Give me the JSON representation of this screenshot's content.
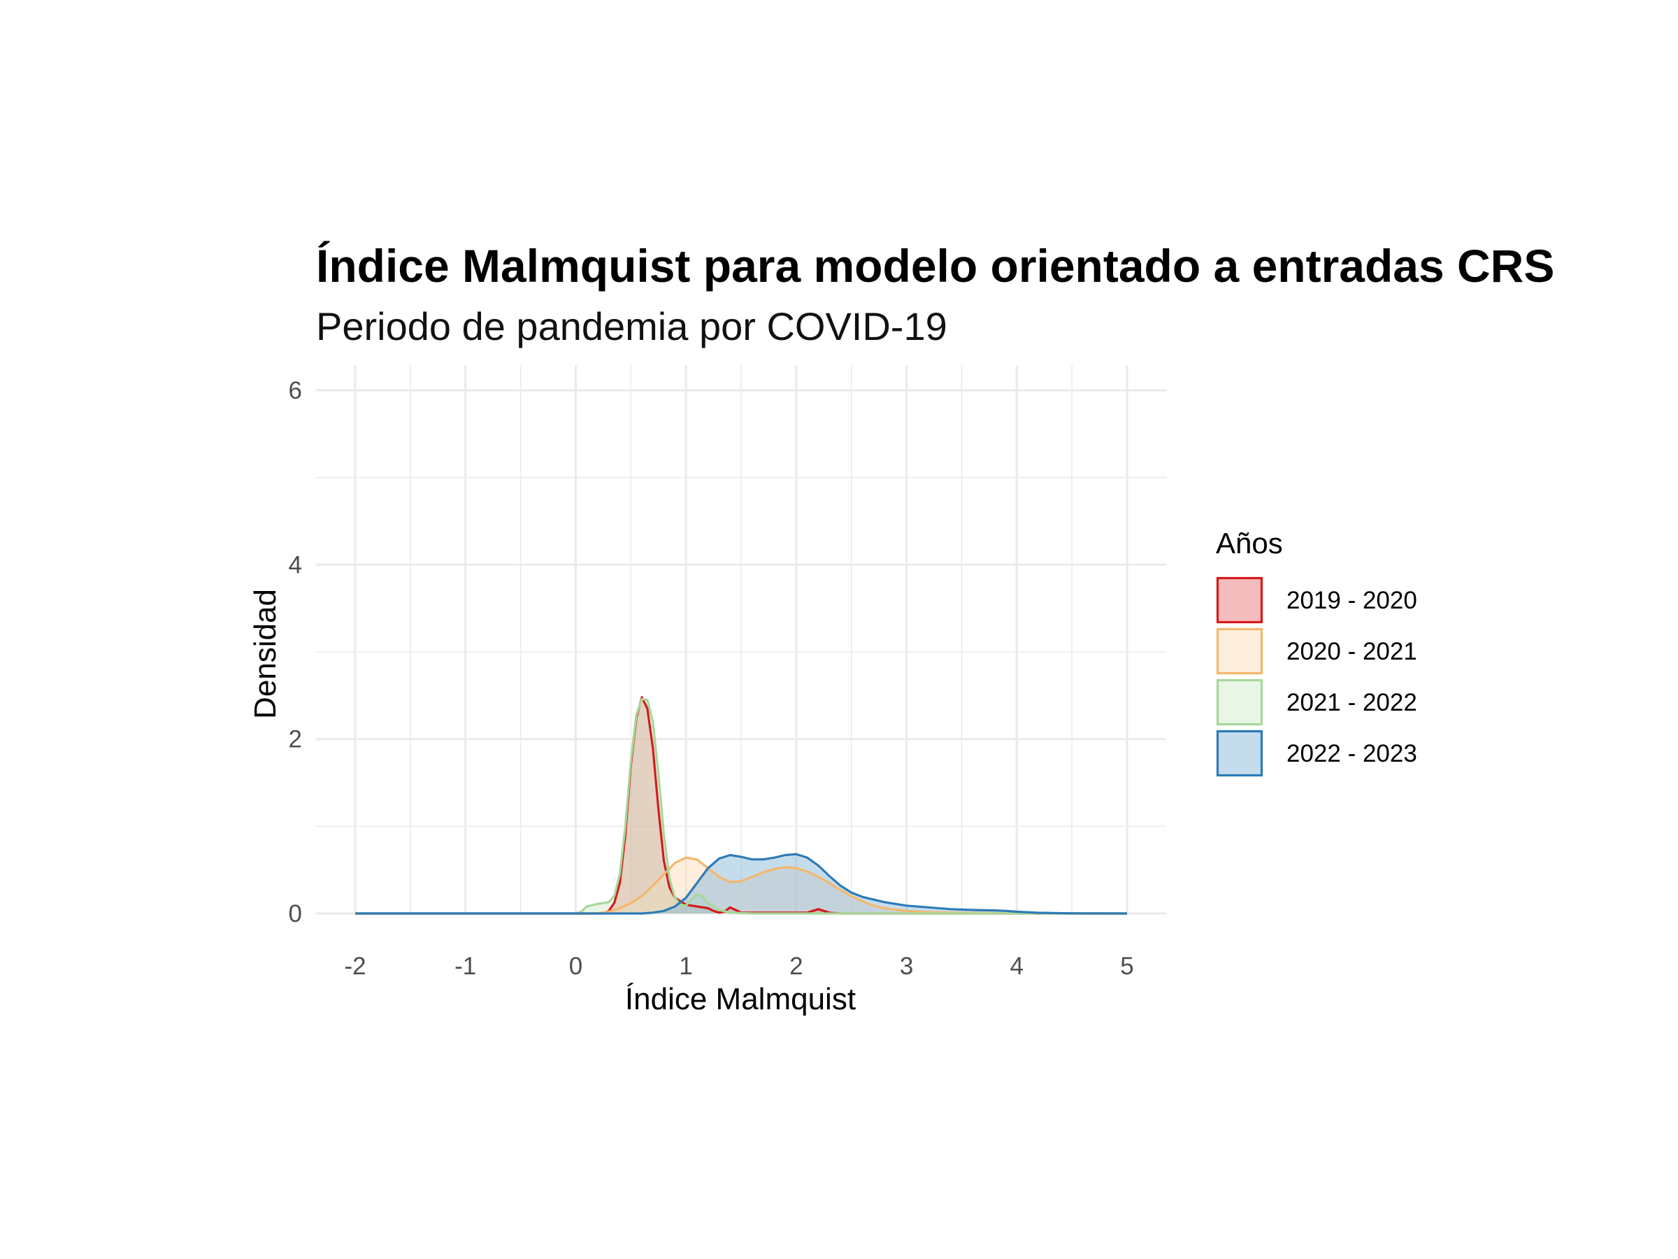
{
  "chart_data": {
    "type": "area",
    "title": "Índice Malmquist para modelo orientado a entradas CRS",
    "subtitle": "Periodo de pandemia por COVID-19",
    "xlabel": "Índice Malmquist",
    "ylabel": "Densidad",
    "xlim": [
      -2,
      5
    ],
    "ylim": [
      0,
      6
    ],
    "xticks": [
      "-2",
      "-1",
      "0",
      "1",
      "2",
      "3",
      "4",
      "5"
    ],
    "yticks": [
      "0",
      "2",
      "4",
      "6"
    ],
    "grid": true,
    "legend": {
      "title": "Años",
      "position": "right"
    },
    "series": [
      {
        "name": "2019 - 2020",
        "line_color": "#d7191c",
        "fill_color": "#e66a6c",
        "points": [
          [
            -2,
            0
          ],
          [
            0.25,
            0
          ],
          [
            0.3,
            0.03
          ],
          [
            0.35,
            0.12
          ],
          [
            0.4,
            0.35
          ],
          [
            0.45,
            0.9
          ],
          [
            0.5,
            1.7
          ],
          [
            0.55,
            2.25
          ],
          [
            0.6,
            2.48
          ],
          [
            0.65,
            2.35
          ],
          [
            0.7,
            1.9
          ],
          [
            0.75,
            1.2
          ],
          [
            0.8,
            0.6
          ],
          [
            0.85,
            0.3
          ],
          [
            0.9,
            0.18
          ],
          [
            1.0,
            0.1
          ],
          [
            1.1,
            0.08
          ],
          [
            1.2,
            0.06
          ],
          [
            1.25,
            0.03
          ],
          [
            1.3,
            0.01
          ],
          [
            1.35,
            0.02
          ],
          [
            1.4,
            0.07
          ],
          [
            1.45,
            0.04
          ],
          [
            1.5,
            0.01
          ],
          [
            2.1,
            0.01
          ],
          [
            2.2,
            0.05
          ],
          [
            2.3,
            0.01
          ],
          [
            2.4,
            0
          ],
          [
            5,
            0
          ]
        ]
      },
      {
        "name": "2020 - 2021",
        "line_color": "#f4b76b",
        "fill_color": "#fdd9b5",
        "points": [
          [
            -2,
            0
          ],
          [
            0.2,
            0
          ],
          [
            0.3,
            0.02
          ],
          [
            0.4,
            0.06
          ],
          [
            0.5,
            0.12
          ],
          [
            0.6,
            0.2
          ],
          [
            0.7,
            0.32
          ],
          [
            0.8,
            0.45
          ],
          [
            0.9,
            0.58
          ],
          [
            1.0,
            0.64
          ],
          [
            1.1,
            0.62
          ],
          [
            1.2,
            0.52
          ],
          [
            1.3,
            0.42
          ],
          [
            1.4,
            0.36
          ],
          [
            1.5,
            0.37
          ],
          [
            1.6,
            0.42
          ],
          [
            1.7,
            0.47
          ],
          [
            1.8,
            0.51
          ],
          [
            1.9,
            0.53
          ],
          [
            2.0,
            0.52
          ],
          [
            2.1,
            0.48
          ],
          [
            2.2,
            0.42
          ],
          [
            2.3,
            0.35
          ],
          [
            2.4,
            0.27
          ],
          [
            2.5,
            0.2
          ],
          [
            2.6,
            0.14
          ],
          [
            2.7,
            0.09
          ],
          [
            2.8,
            0.06
          ],
          [
            3.0,
            0.03
          ],
          [
            3.2,
            0.015
          ],
          [
            3.5,
            0.008
          ],
          [
            4.0,
            0.002
          ],
          [
            4.2,
            0
          ],
          [
            5,
            0
          ]
        ]
      },
      {
        "name": "2021 - 2022",
        "line_color": "#a6d89a",
        "fill_color": "#cfeac6",
        "points": [
          [
            -2,
            0
          ],
          [
            0.0,
            0
          ],
          [
            0.05,
            0.02
          ],
          [
            0.1,
            0.08
          ],
          [
            0.2,
            0.11
          ],
          [
            0.3,
            0.13
          ],
          [
            0.35,
            0.2
          ],
          [
            0.4,
            0.45
          ],
          [
            0.45,
            1.0
          ],
          [
            0.5,
            1.75
          ],
          [
            0.55,
            2.28
          ],
          [
            0.6,
            2.46
          ],
          [
            0.65,
            2.45
          ],
          [
            0.7,
            2.2
          ],
          [
            0.75,
            1.6
          ],
          [
            0.8,
            0.9
          ],
          [
            0.85,
            0.4
          ],
          [
            0.9,
            0.18
          ],
          [
            0.95,
            0.1
          ],
          [
            1.0,
            0.09
          ],
          [
            1.05,
            0.16
          ],
          [
            1.1,
            0.22
          ],
          [
            1.15,
            0.2
          ],
          [
            1.2,
            0.12
          ],
          [
            1.3,
            0.04
          ],
          [
            1.4,
            0.01
          ],
          [
            1.6,
            0
          ],
          [
            5,
            0
          ]
        ]
      },
      {
        "name": "2022 - 2023",
        "line_color": "#2c7bb6",
        "fill_color": "#7fb2d6",
        "points": [
          [
            -2,
            0
          ],
          [
            0.6,
            0
          ],
          [
            0.7,
            0.01
          ],
          [
            0.8,
            0.03
          ],
          [
            0.9,
            0.08
          ],
          [
            1.0,
            0.18
          ],
          [
            1.1,
            0.35
          ],
          [
            1.2,
            0.52
          ],
          [
            1.3,
            0.63
          ],
          [
            1.4,
            0.67
          ],
          [
            1.5,
            0.65
          ],
          [
            1.6,
            0.62
          ],
          [
            1.7,
            0.62
          ],
          [
            1.8,
            0.64
          ],
          [
            1.9,
            0.67
          ],
          [
            2.0,
            0.68
          ],
          [
            2.1,
            0.64
          ],
          [
            2.2,
            0.55
          ],
          [
            2.3,
            0.43
          ],
          [
            2.4,
            0.32
          ],
          [
            2.5,
            0.24
          ],
          [
            2.6,
            0.19
          ],
          [
            2.7,
            0.16
          ],
          [
            2.8,
            0.13
          ],
          [
            2.9,
            0.11
          ],
          [
            3.0,
            0.09
          ],
          [
            3.2,
            0.07
          ],
          [
            3.4,
            0.05
          ],
          [
            3.6,
            0.04
          ],
          [
            3.8,
            0.035
          ],
          [
            3.9,
            0.03
          ],
          [
            4.0,
            0.02
          ],
          [
            4.2,
            0.008
          ],
          [
            4.5,
            0.002
          ],
          [
            5,
            0
          ]
        ]
      }
    ]
  }
}
